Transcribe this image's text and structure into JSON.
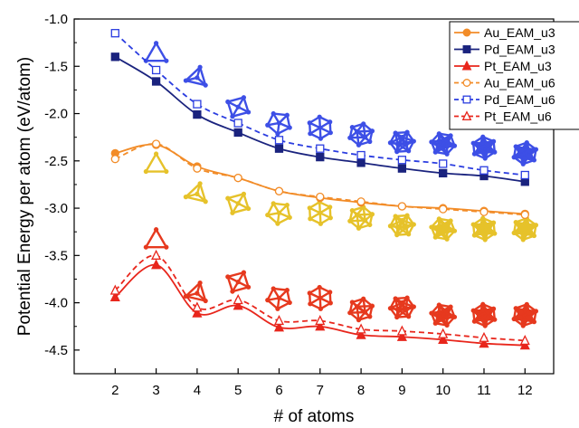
{
  "chart_data": {
    "type": "line",
    "xlabel": "# of atoms",
    "ylabel": "Potential Energy per atom (eV/atom)",
    "x": [
      2,
      3,
      4,
      5,
      6,
      7,
      8,
      9,
      10,
      11,
      12
    ],
    "xlim": [
      1,
      12.7
    ],
    "ylim": [
      -4.75,
      -1.0
    ],
    "xticks": [
      "2",
      "3",
      "4",
      "5",
      "6",
      "7",
      "8",
      "9",
      "10",
      "11",
      "12"
    ],
    "yticks": [
      "-1.0",
      "-1.5",
      "-2.0",
      "-2.5",
      "-3.0",
      "-3.5",
      "-4.0",
      "-4.5"
    ],
    "legend_position": "top-right",
    "grid": false,
    "series": [
      {
        "name": "Au_EAM_u3",
        "color": "#f28c28",
        "line": "solid",
        "marker": "circle",
        "filled": true,
        "values": [
          -2.42,
          -2.33,
          -2.56,
          -2.68,
          -2.82,
          -2.89,
          -2.94,
          -2.98,
          -3.0,
          -3.03,
          -3.06
        ]
      },
      {
        "name": "Pd_EAM_u3",
        "color": "#1a237e",
        "line": "solid",
        "marker": "square",
        "filled": true,
        "values": [
          -1.4,
          -1.66,
          -2.01,
          -2.2,
          -2.37,
          -2.46,
          -2.52,
          -2.58,
          -2.63,
          -2.66,
          -2.72
        ]
      },
      {
        "name": "Pt_EAM_u3",
        "color": "#e8261c",
        "line": "solid",
        "marker": "triangle",
        "filled": true,
        "values": [
          -3.94,
          -3.6,
          -4.11,
          -4.03,
          -4.26,
          -4.25,
          -4.34,
          -4.36,
          -4.39,
          -4.43,
          -4.45
        ]
      },
      {
        "name": "Au_EAM_u6",
        "color": "#f28c28",
        "line": "dashed",
        "marker": "circle",
        "filled": false,
        "values": [
          -2.48,
          -2.32,
          -2.58,
          -2.68,
          -2.82,
          -2.88,
          -2.93,
          -2.98,
          -3.01,
          -3.04,
          -3.07
        ]
      },
      {
        "name": "Pd_EAM_u6",
        "color": "#2b3de0",
        "line": "dashed",
        "marker": "square",
        "filled": false,
        "values": [
          -1.15,
          -1.54,
          -1.9,
          -2.1,
          -2.28,
          -2.37,
          -2.44,
          -2.49,
          -2.53,
          -2.6,
          -2.65
        ]
      },
      {
        "name": "Pt_EAM_u6",
        "color": "#e8261c",
        "line": "dashed",
        "marker": "triangle",
        "filled": false,
        "values": [
          -3.87,
          -3.5,
          -4.05,
          -3.97,
          -4.19,
          -4.19,
          -4.28,
          -4.3,
          -4.33,
          -4.37,
          -4.4
        ]
      }
    ],
    "cluster_illustrations": [
      {
        "element": "Pd",
        "color": "#3d4fe6",
        "x": [
          3,
          4,
          5,
          6,
          7,
          8,
          9,
          10,
          11,
          12
        ],
        "y": [
          -1.38,
          -1.62,
          -1.93,
          -2.1,
          -2.15,
          -2.22,
          -2.3,
          -2.32,
          -2.36,
          -2.42
        ]
      },
      {
        "element": "Au",
        "color": "#e6c22a",
        "x": [
          3,
          4,
          5,
          6,
          7,
          8,
          9,
          10,
          11,
          12
        ],
        "y": [
          -2.55,
          -2.85,
          -2.95,
          -3.05,
          -3.05,
          -3.1,
          -3.18,
          -3.22,
          -3.22,
          -3.22
        ]
      },
      {
        "element": "Pt",
        "color": "#e6391e",
        "x": [
          3,
          4,
          5,
          6,
          7,
          8,
          9,
          10,
          11,
          12
        ],
        "y": [
          -3.35,
          -3.9,
          -3.78,
          -3.95,
          -3.95,
          -4.07,
          -4.05,
          -4.13,
          -4.13,
          -4.13
        ]
      }
    ]
  }
}
